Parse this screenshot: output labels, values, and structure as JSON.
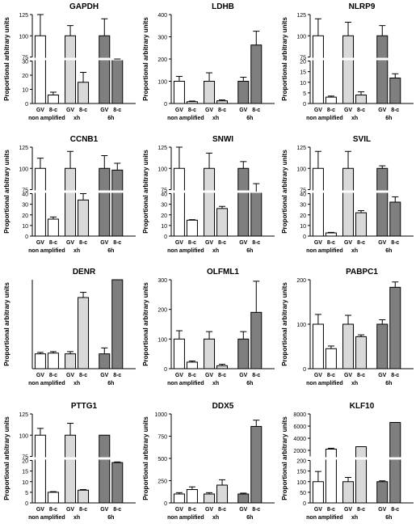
{
  "figure": {
    "ylabel": "Proportional arbitrary units",
    "group_labels": [
      "non amplified",
      "xh",
      "6h"
    ],
    "bar_labels": [
      "GV",
      "8-c"
    ],
    "group_fills": [
      "#ffffff",
      "#d9d9d9",
      "#7f7f7f"
    ]
  },
  "chart_data": [
    {
      "type": "bar",
      "title": "GAPDH",
      "axis": {
        "type": "broken",
        "lower": [
          0,
          30
        ],
        "upper": [
          75,
          125
        ],
        "ticks": [
          0,
          10,
          20,
          30,
          75,
          100,
          125
        ]
      },
      "values": [
        [
          100,
          6
        ],
        [
          100,
          15
        ],
        [
          100,
          42
        ]
      ],
      "errors": [
        [
          25,
          2
        ],
        [
          12,
          7
        ],
        [
          20,
          8
        ]
      ]
    },
    {
      "type": "bar",
      "title": "LDHB",
      "axis": {
        "type": "linear",
        "range": [
          0,
          400
        ],
        "ticks": [
          0,
          100,
          200,
          300,
          400
        ]
      },
      "values": [
        [
          100,
          8
        ],
        [
          100,
          12
        ],
        [
          100,
          263
        ]
      ],
      "errors": [
        [
          22,
          3
        ],
        [
          38,
          4
        ],
        [
          18,
          62
        ]
      ]
    },
    {
      "type": "bar",
      "title": "NLRP9",
      "axis": {
        "type": "broken",
        "lower": [
          0,
          20
        ],
        "upper": [
          75,
          125
        ],
        "ticks": [
          0,
          5,
          10,
          15,
          20,
          75,
          100,
          125
        ]
      },
      "values": [
        [
          100,
          3
        ],
        [
          100,
          4
        ],
        [
          100,
          12
        ]
      ],
      "errors": [
        [
          20,
          0.5
        ],
        [
          16,
          1.5
        ],
        [
          12,
          2
        ]
      ]
    },
    {
      "type": "bar",
      "title": "CCNB1",
      "axis": {
        "type": "broken",
        "lower": [
          0,
          40
        ],
        "upper": [
          75,
          125
        ],
        "ticks": [
          0,
          10,
          20,
          30,
          40,
          75,
          100,
          125
        ]
      },
      "values": [
        [
          100,
          16
        ],
        [
          100,
          34
        ],
        [
          100,
          98
        ]
      ],
      "errors": [
        [
          12,
          2
        ],
        [
          20,
          6
        ],
        [
          15,
          8
        ]
      ]
    },
    {
      "type": "bar",
      "title": "SNWI",
      "axis": {
        "type": "broken",
        "lower": [
          0,
          40
        ],
        "upper": [
          75,
          125
        ],
        "ticks": [
          0,
          10,
          20,
          30,
          40,
          75,
          100,
          125
        ]
      },
      "values": [
        [
          100,
          15
        ],
        [
          100,
          26
        ],
        [
          100,
          74
        ]
      ],
      "errors": [
        [
          25,
          0.5
        ],
        [
          18,
          2
        ],
        [
          8,
          8
        ]
      ]
    },
    {
      "type": "bar",
      "title": "SVIL",
      "axis": {
        "type": "broken",
        "lower": [
          0,
          40
        ],
        "upper": [
          75,
          125
        ],
        "ticks": [
          0,
          10,
          20,
          30,
          40,
          75,
          100,
          125
        ]
      },
      "values": [
        [
          100,
          3
        ],
        [
          100,
          22
        ],
        [
          100,
          32
        ]
      ],
      "errors": [
        [
          20,
          0.5
        ],
        [
          20,
          2
        ],
        [
          3,
          5
        ]
      ]
    },
    {
      "type": "bar",
      "title": "DENR",
      "axis": {
        "type": "linear",
        "range": [
          0,
          600
        ],
        "ticks": [],
        "no_tick_labels": true
      },
      "values": [
        [
          100,
          105
        ],
        [
          100,
          480
        ],
        [
          100,
          2400
        ]
      ],
      "errors": [
        [
          10,
          10
        ],
        [
          15,
          35
        ],
        [
          40,
          300
        ]
      ]
    },
    {
      "type": "bar",
      "title": "OLFML1",
      "axis": {
        "type": "linear",
        "range": [
          0,
          300
        ],
        "ticks": [
          0,
          100,
          200,
          300
        ]
      },
      "values": [
        [
          100,
          22
        ],
        [
          100,
          10
        ],
        [
          100,
          190
        ]
      ],
      "errors": [
        [
          28,
          4
        ],
        [
          25,
          5
        ],
        [
          25,
          105
        ]
      ]
    },
    {
      "type": "bar",
      "title": "PABPC1",
      "axis": {
        "type": "linear",
        "range": [
          0,
          200
        ],
        "ticks": [
          0,
          100,
          200
        ]
      },
      "values": [
        [
          100,
          45
        ],
        [
          100,
          72
        ],
        [
          100,
          183
        ]
      ],
      "errors": [
        [
          22,
          6
        ],
        [
          20,
          4
        ],
        [
          10,
          12
        ]
      ]
    },
    {
      "type": "bar",
      "title": "PTTG1",
      "axis": {
        "type": "broken",
        "lower": [
          0,
          20
        ],
        "upper": [
          75,
          125
        ],
        "ticks": [
          0,
          5,
          10,
          15,
          20,
          75,
          100,
          125
        ]
      },
      "values": [
        [
          100,
          5
        ],
        [
          100,
          6
        ],
        [
          100,
          19
        ]
      ],
      "errors": [
        [
          8,
          0.3
        ],
        [
          14,
          0.3
        ],
        [
          0,
          0.3
        ]
      ]
    },
    {
      "type": "bar",
      "title": "DDX5",
      "axis": {
        "type": "linear",
        "range": [
          0,
          1000
        ],
        "ticks": [
          0,
          250,
          500,
          750,
          1000
        ]
      },
      "values": [
        [
          100,
          150
        ],
        [
          100,
          200
        ],
        [
          100,
          860
        ]
      ],
      "errors": [
        [
          15,
          30
        ],
        [
          15,
          60
        ],
        [
          10,
          70
        ]
      ]
    },
    {
      "type": "bar",
      "title": "KLF10",
      "axis": {
        "type": "broken",
        "lower": [
          0,
          200
        ],
        "upper": [
          1000,
          8000
        ],
        "ticks": [
          0,
          50,
          100,
          150,
          200,
          2000,
          4000,
          6000,
          8000
        ]
      },
      "values": [
        [
          100,
          2200
        ],
        [
          100,
          2600
        ],
        [
          100,
          6600
        ]
      ],
      "errors": [
        [
          48,
          150
        ],
        [
          20,
          0
        ],
        [
          4,
          0
        ]
      ]
    }
  ]
}
